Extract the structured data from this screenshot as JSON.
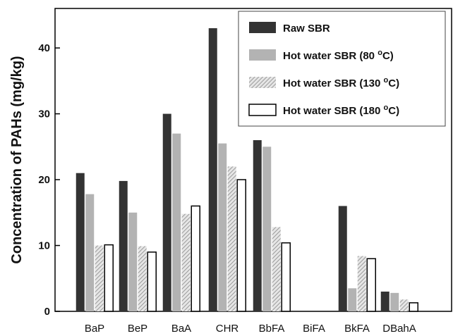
{
  "chart_data": {
    "type": "bar",
    "title": "",
    "xlabel": "",
    "ylabel": "Concentration of PAHs (mg/kg)",
    "ylim": [
      0,
      46
    ],
    "yticks": [
      0,
      10,
      20,
      30,
      40
    ],
    "grid": false,
    "legend_position": "top-right",
    "categories": [
      "BaP",
      "BeP",
      "BaA",
      "CHR",
      "BbFA",
      "BiFA",
      "BkFA",
      "DBahA"
    ],
    "series": [
      {
        "name": "Raw SBR",
        "label_main": "Raw SBR",
        "label_sup": "",
        "label_end": "",
        "fill": "#333333",
        "pattern": "solid",
        "values": [
          21,
          19.8,
          30,
          43,
          26,
          0,
          16,
          3
        ]
      },
      {
        "name": "Hot water SBR (80 °C)",
        "label_main": "Hot water SBR (80 ",
        "label_sup": "o",
        "label_end": "C)",
        "fill": "#b3b3b3",
        "pattern": "solid",
        "values": [
          17.8,
          15,
          27,
          25.5,
          25,
          0,
          3.5,
          2.8
        ]
      },
      {
        "name": "Hot water SBR (130 °C)",
        "label_main": "Hot water SBR (130 ",
        "label_sup": "o",
        "label_end": "C)",
        "fill": "#cccccc",
        "pattern": "hatch",
        "values": [
          10,
          9.9,
          14.8,
          22,
          12.8,
          0,
          8.4,
          1.8
        ]
      },
      {
        "name": "Hot water SBR (180 °C)",
        "label_main": "Hot water SBR (180 ",
        "label_sup": "o",
        "label_end": "C)",
        "fill": "#ffffff",
        "pattern": "outline",
        "values": [
          10.1,
          9,
          16,
          20,
          10.4,
          0,
          8,
          1.3
        ]
      }
    ]
  }
}
